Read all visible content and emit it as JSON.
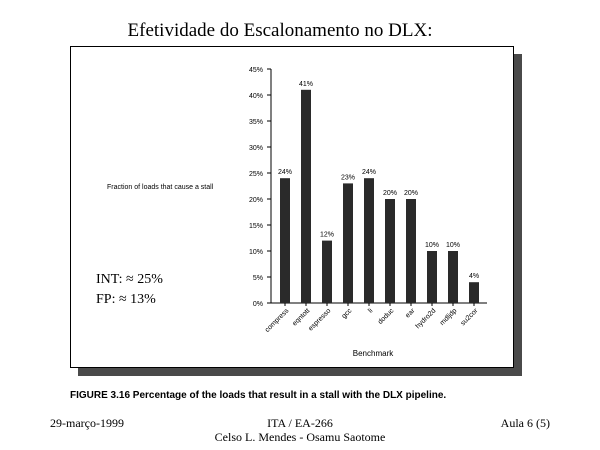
{
  "slide": {
    "title": "Efetividade do Escalonamento no DLX:",
    "callout_int": "INT: ≈ 25%",
    "callout_fp": "FP: ≈ 13%",
    "caption": "FIGURE 3.16  Percentage of the loads that result in a stall with the DLX pipeline.",
    "footer_date": "29-março-1999",
    "footer_course": "ITA / EA-266",
    "footer_authors": "Celso L. Mendes - Osamu Saotome",
    "footer_page": "Aula 6 (5)"
  },
  "chart_data": {
    "type": "bar",
    "categories": [
      "compress",
      "eqntott",
      "espresso",
      "gcc",
      "li",
      "doduc",
      "ear",
      "hydro2d",
      "mdljdp",
      "su2cor"
    ],
    "values": [
      24,
      41,
      12,
      23,
      24,
      20,
      20,
      10,
      10,
      4
    ],
    "value_labels": [
      "24%",
      "41%",
      "12%",
      "23%",
      "24%",
      "20%",
      "20%",
      "10%",
      "10%",
      "4%"
    ],
    "ylabel": "Fraction of loads that cause a stall",
    "xlabel": "Benchmark",
    "ylim": [
      0,
      45
    ],
    "yticks": [
      0,
      5,
      10,
      15,
      20,
      25,
      30,
      35,
      40,
      45
    ],
    "ytick_labels": [
      "0%",
      "5%",
      "10%",
      "15%",
      "20%",
      "25%",
      "30%",
      "35%",
      "40%",
      "45%"
    ],
    "grid": false,
    "colors": {
      "bar": "#2a2a2a",
      "axis": "#000000"
    }
  }
}
